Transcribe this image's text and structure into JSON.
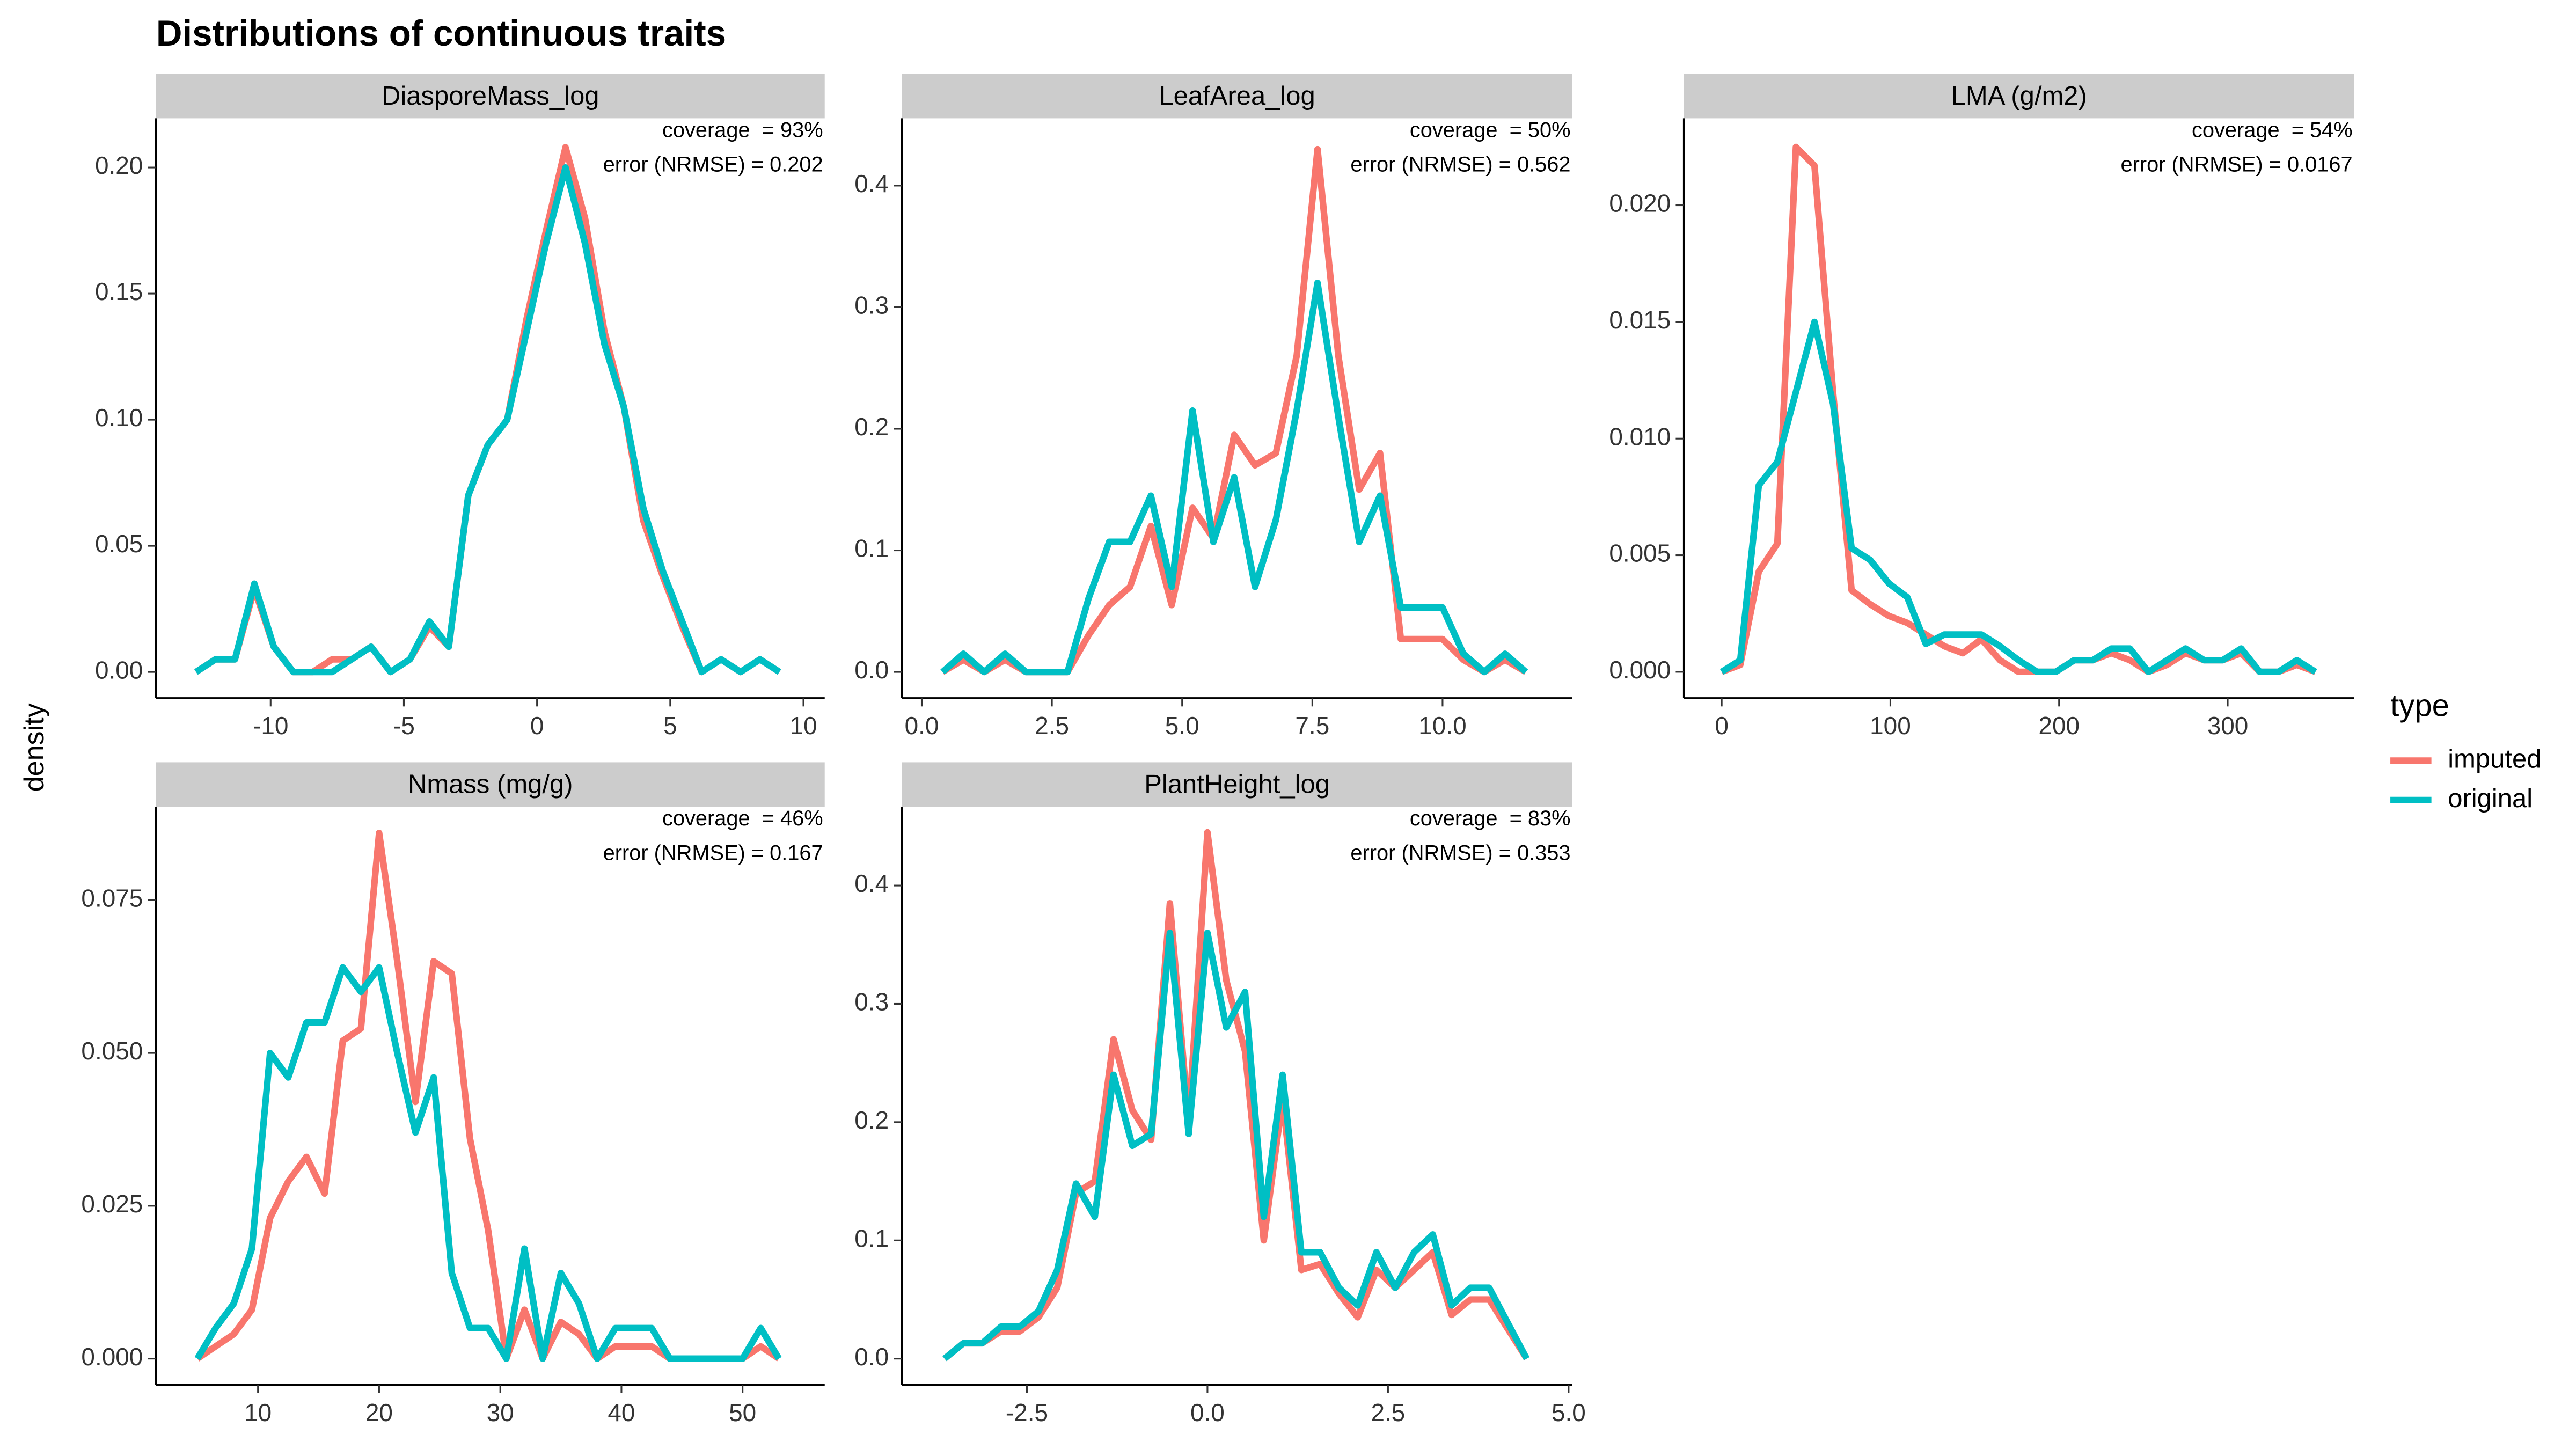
{
  "title": "Distributions of continuous traits",
  "ylabel": "density",
  "legend_title": "type",
  "chart_data": [
    {
      "type": "line",
      "title": "DiasporeMass_log",
      "annotations": [
        "coverage  = 93%",
        "error (NRMSE) = 0.202"
      ],
      "x": [
        -12.8,
        -12.07,
        -11.34,
        -10.61,
        -9.88,
        -9.15,
        -8.42,
        -7.69,
        -6.96,
        -6.23,
        -5.5,
        -4.77,
        -4.04,
        -3.31,
        -2.58,
        -1.85,
        -1.12,
        -0.39,
        0.34,
        1.07,
        1.8,
        2.53,
        3.26,
        3.99,
        4.72,
        5.45,
        6.18,
        6.91,
        7.64,
        8.37,
        9.1
      ],
      "series": [
        {
          "name": "imputed",
          "color": "#F8766D",
          "values": [
            0,
            0.005,
            0.005,
            0.033,
            0.01,
            0,
            0,
            0.005,
            0.005,
            0.01,
            0,
            0.005,
            0.018,
            0.01,
            0.07,
            0.09,
            0.1,
            0.14,
            0.175,
            0.208,
            0.18,
            0.135,
            0.105,
            0.06,
            0.038,
            0.018,
            0,
            0.005,
            0,
            0.005,
            0
          ]
        },
        {
          "name": "original",
          "color": "#00BFC4",
          "values": [
            0,
            0.005,
            0.005,
            0.035,
            0.01,
            0,
            0,
            0,
            0.005,
            0.01,
            0,
            0.005,
            0.02,
            0.01,
            0.07,
            0.09,
            0.1,
            0.135,
            0.17,
            0.2,
            0.17,
            0.13,
            0.105,
            0.065,
            0.04,
            0.02,
            0,
            0.005,
            0,
            0.005,
            0
          ]
        }
      ],
      "xlim": [
        -14.3,
        10.8
      ],
      "ylim": [
        -0.0104,
        0.2195
      ],
      "xticks": [
        -10,
        -5,
        0,
        5,
        10
      ],
      "yticks": [
        {
          "value": 0,
          "label": "0.00"
        },
        {
          "value": 0.05,
          "label": "0.05"
        },
        {
          "value": 0.1,
          "label": "0.10"
        },
        {
          "value": 0.15,
          "label": "0.15"
        },
        {
          "value": 0.2,
          "label": "0.20"
        }
      ]
    },
    {
      "type": "line",
      "title": "LeafArea_log",
      "annotations": [
        "coverage  = 50%",
        "error (NRMSE) = 0.562"
      ],
      "x": [
        0.4,
        0.8,
        1.2,
        1.6,
        2.0,
        2.4,
        2.8,
        3.2,
        3.6,
        4.0,
        4.4,
        4.8,
        5.2,
        5.6,
        6.0,
        6.4,
        6.8,
        7.2,
        7.6,
        8.0,
        8.4,
        8.8,
        9.2,
        9.6,
        10.0,
        10.4,
        10.8,
        11.2,
        11.6
      ],
      "series": [
        {
          "name": "imputed",
          "color": "#F8766D",
          "values": [
            0,
            0.01,
            0,
            0.01,
            0,
            0,
            0,
            0.03,
            0.055,
            0.07,
            0.12,
            0.055,
            0.135,
            0.11,
            0.195,
            0.17,
            0.18,
            0.26,
            0.43,
            0.26,
            0.15,
            0.18,
            0.027,
            0.027,
            0.027,
            0.01,
            0,
            0.01,
            0
          ]
        },
        {
          "name": "original",
          "color": "#00BFC4",
          "values": [
            0,
            0.015,
            0,
            0.015,
            0,
            0,
            0,
            0.06,
            0.107,
            0.107,
            0.145,
            0.07,
            0.215,
            0.107,
            0.16,
            0.07,
            0.125,
            0.215,
            0.32,
            0.21,
            0.107,
            0.145,
            0.053,
            0.053,
            0.053,
            0.015,
            0,
            0.015,
            0
          ]
        }
      ],
      "xlim": [
        -0.38,
        12.49
      ],
      "ylim": [
        -0.0216,
        0.4554
      ],
      "xticks": [
        {
          "value": 0,
          "label": "0.0"
        },
        2.5,
        {
          "value": 5,
          "label": "5.0"
        },
        7.5,
        {
          "value": 10,
          "label": "10.0"
        }
      ],
      "yticks": [
        {
          "value": 0,
          "label": "0.0"
        },
        0.1,
        0.2,
        0.3,
        0.4
      ]
    },
    {
      "type": "line",
      "title": "LMA (g/m2)",
      "annotations": [
        "coverage  = 54%",
        "error (NRMSE) = 0.0167"
      ],
      "x": [
        0,
        11,
        22,
        33,
        44,
        55,
        66,
        77,
        88,
        99,
        110,
        121,
        132,
        143,
        154,
        165,
        176,
        187,
        198,
        209,
        220,
        231,
        242,
        253,
        264,
        275,
        286,
        297,
        308,
        319,
        330,
        341,
        352
      ],
      "series": [
        {
          "name": "imputed",
          "color": "#F8766D",
          "values": [
            0,
            0.0003,
            0.0043,
            0.0055,
            0.0225,
            0.0217,
            0.012,
            0.0035,
            0.0029,
            0.0024,
            0.0021,
            0.0016,
            0.0011,
            0.0008,
            0.0014,
            0.0005,
            0,
            0,
            0,
            0.0005,
            0.0005,
            0.0008,
            0.0005,
            0,
            0.0003,
            0.0008,
            0.0005,
            0.0005,
            0.0008,
            0,
            0,
            0.0003,
            0
          ]
        },
        {
          "name": "original",
          "color": "#00BFC4",
          "values": [
            0,
            0.0005,
            0.008,
            0.009,
            0.012,
            0.015,
            0.0115,
            0.0053,
            0.0048,
            0.0038,
            0.0032,
            0.0012,
            0.0016,
            0.0016,
            0.0016,
            0.0011,
            0.0005,
            0,
            0,
            0.0005,
            0.0005,
            0.001,
            0.001,
            0,
            0.0005,
            0.001,
            0.0005,
            0.0005,
            0.001,
            0,
            0,
            0.0005,
            0
          ]
        }
      ],
      "xlim": [
        -22.4,
        375
      ],
      "ylim": [
        -0.00113,
        0.02373
      ],
      "xticks": [
        0,
        100,
        200,
        300
      ],
      "yticks": [
        {
          "value": 0,
          "label": "0.000"
        },
        {
          "value": 0.005,
          "label": "0.005"
        },
        {
          "value": 0.01,
          "label": "0.010"
        },
        {
          "value": 0.015,
          "label": "0.015"
        },
        {
          "value": 0.02,
          "label": "0.020"
        }
      ]
    },
    {
      "type": "line",
      "title": "Nmass (mg/g)",
      "annotations": [
        "coverage  = 46%",
        "error (NRMSE) = 0.167"
      ],
      "x": [
        5,
        6.5,
        8,
        9.5,
        11,
        12.5,
        14,
        15.5,
        17,
        18.5,
        20,
        21.5,
        23,
        24.5,
        26,
        27.5,
        29,
        30.5,
        32,
        33.5,
        35,
        36.5,
        38,
        39.5,
        41,
        42.5,
        44,
        45.5,
        47,
        48.5,
        50,
        51.5,
        53
      ],
      "series": [
        {
          "name": "imputed",
          "color": "#F8766D",
          "values": [
            0,
            0.002,
            0.004,
            0.008,
            0.023,
            0.029,
            0.033,
            0.027,
            0.052,
            0.054,
            0.086,
            0.065,
            0.042,
            0.065,
            0.063,
            0.036,
            0.021,
            0,
            0.008,
            0,
            0.006,
            0.004,
            0,
            0.002,
            0.002,
            0.002,
            0,
            0,
            0,
            0,
            0,
            0.002,
            0
          ]
        },
        {
          "name": "original",
          "color": "#00BFC4",
          "values": [
            0,
            0.005,
            0.009,
            0.018,
            0.05,
            0.046,
            0.055,
            0.055,
            0.064,
            0.06,
            0.064,
            0.05,
            0.037,
            0.046,
            0.014,
            0.005,
            0.005,
            0,
            0.018,
            0,
            0.014,
            0.009,
            0,
            0.005,
            0.005,
            0.005,
            0,
            0,
            0,
            0,
            0,
            0.005,
            0
          ]
        }
      ],
      "xlim": [
        1.59,
        56.78
      ],
      "ylim": [
        -0.0043,
        0.0903
      ],
      "xticks": [
        10,
        20,
        30,
        40,
        50
      ],
      "yticks": [
        {
          "value": 0,
          "label": "0.000"
        },
        {
          "value": 0.025,
          "label": "0.025"
        },
        {
          "value": 0.05,
          "label": "0.050"
        },
        {
          "value": 0.075,
          "label": "0.075"
        }
      ]
    },
    {
      "type": "line",
      "title": "PlantHeight_log",
      "annotations": [
        "coverage  = 83%",
        "error (NRMSE) = 0.353"
      ],
      "x": [
        -3.64,
        -3.38,
        -3.12,
        -2.86,
        -2.6,
        -2.34,
        -2.08,
        -1.82,
        -1.56,
        -1.3,
        -1.04,
        -0.78,
        -0.52,
        -0.26,
        0,
        0.26,
        0.52,
        0.78,
        1.04,
        1.3,
        1.56,
        1.82,
        2.08,
        2.34,
        2.6,
        2.86,
        3.12,
        3.38,
        3.64,
        3.9,
        4.16,
        4.42
      ],
      "series": [
        {
          "name": "imputed",
          "color": "#F8766D",
          "values": [
            0,
            0.013,
            0.013,
            0.023,
            0.023,
            0.035,
            0.06,
            0.14,
            0.15,
            0.27,
            0.21,
            0.185,
            0.385,
            0.2,
            0.445,
            0.32,
            0.26,
            0.1,
            0.22,
            0.075,
            0.08,
            0.055,
            0.035,
            0.075,
            0.06,
            0.075,
            0.09,
            0.037,
            0.05,
            0.05,
            0.025,
            0
          ]
        },
        {
          "name": "original",
          "color": "#00BFC4",
          "values": [
            0,
            0.013,
            0.013,
            0.027,
            0.027,
            0.04,
            0.075,
            0.148,
            0.12,
            0.24,
            0.18,
            0.19,
            0.36,
            0.19,
            0.36,
            0.28,
            0.31,
            0.12,
            0.24,
            0.09,
            0.09,
            0.06,
            0.045,
            0.09,
            0.06,
            0.09,
            0.105,
            0.045,
            0.06,
            0.06,
            0.03,
            0
          ]
        }
      ],
      "xlim": [
        -4.23,
        5.05
      ],
      "ylim": [
        -0.0222,
        0.4667
      ],
      "xticks": [
        -2.5,
        {
          "value": 0,
          "label": "0.0"
        },
        2.5,
        {
          "value": 5,
          "label": "5.0"
        }
      ],
      "yticks": [
        {
          "value": 0,
          "label": "0.0"
        },
        0.1,
        0.2,
        0.3,
        0.4
      ]
    }
  ]
}
